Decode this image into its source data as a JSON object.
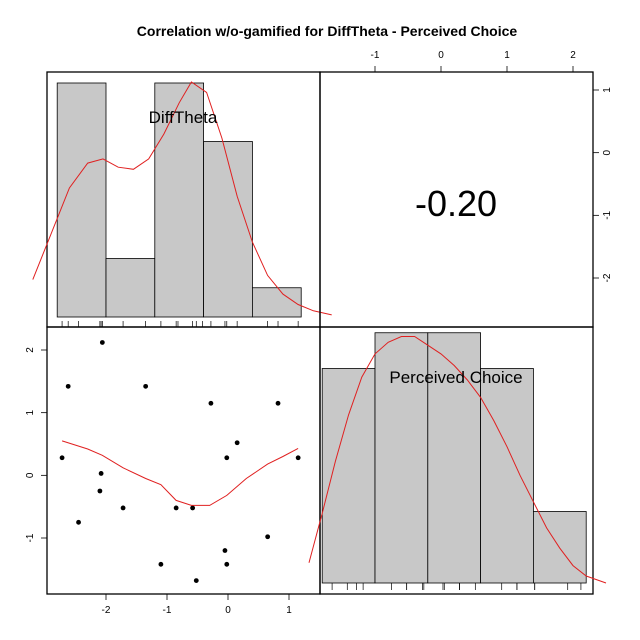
{
  "chart_data": {
    "type": "pairs",
    "title": "Correlation w/o-gamified for DiffTheta - Perceived Choice",
    "variables": [
      "DiffTheta",
      "Perceived Choice"
    ],
    "correlation_label": "-0.20",
    "correlation": -0.2,
    "x_ticks": [
      "-2",
      "-1",
      "0",
      "1"
    ],
    "y_ticks": [
      "2",
      "1",
      "0",
      "-1"
    ],
    "top_ticks": [
      "-1",
      "0",
      "1",
      "2"
    ],
    "right_ticks": [
      "1",
      "0",
      "-1",
      "-2"
    ],
    "histograms": [
      {
        "variable": "DiffTheta",
        "breaks": [
          -2.8,
          -2.0,
          -1.2,
          -0.4,
          0.4,
          1.2
        ],
        "heights": [
          4,
          1,
          4,
          3,
          0.5
        ],
        "rug": [
          -2.72,
          -2.62,
          -2.45,
          -2.1,
          -2.08,
          -2.06,
          -1.72,
          -1.35,
          -1.1,
          -0.85,
          -0.82,
          -0.58,
          -0.52,
          -0.42,
          -0.28,
          -0.05,
          -0.02,
          0.15,
          0.65,
          0.82,
          1.15
        ]
      },
      {
        "variable": "Perceived Choice",
        "breaks": [
          -1.8,
          -1.0,
          -0.2,
          0.6,
          1.4,
          2.2
        ],
        "heights": [
          3,
          3.5,
          3.5,
          3,
          1
        ],
        "rug": [
          -1.65,
          -1.42,
          -1.28,
          -1.18,
          -0.75,
          -0.52,
          -0.52,
          -0.28,
          -0.26,
          0.03,
          0.05,
          0.28,
          0.28,
          0.52,
          0.92,
          1.15,
          1.15,
          1.42,
          1.42,
          1.92,
          2.12
        ]
      }
    ],
    "density_curves": [
      {
        "variable": "DiffTheta",
        "x": [
          -3.2,
          -2.9,
          -2.6,
          -2.3,
          -2.05,
          -1.8,
          -1.55,
          -1.3,
          -1.05,
          -0.8,
          -0.6,
          -0.35,
          -0.1,
          0.15,
          0.4,
          0.65,
          0.9,
          1.15,
          1.4,
          1.7
        ],
        "density": [
          0.18,
          0.4,
          0.62,
          0.74,
          0.76,
          0.72,
          0.71,
          0.76,
          0.88,
          1.03,
          1.13,
          1.08,
          0.86,
          0.58,
          0.36,
          0.2,
          0.11,
          0.06,
          0.03,
          0.01
        ]
      },
      {
        "variable": "Perceived Choice",
        "x": [
          -2.0,
          -1.8,
          -1.6,
          -1.4,
          -1.2,
          -1.0,
          -0.8,
          -0.6,
          -0.4,
          -0.2,
          0.0,
          0.2,
          0.4,
          0.6,
          0.8,
          1.0,
          1.2,
          1.4,
          1.6,
          1.8,
          2.0,
          2.2,
          2.5
        ],
        "density": [
          0.35,
          1.2,
          2.1,
          2.9,
          3.55,
          3.95,
          4.15,
          4.25,
          4.25,
          4.1,
          3.95,
          3.75,
          3.5,
          3.2,
          2.8,
          2.35,
          1.85,
          1.4,
          0.95,
          0.6,
          0.3,
          0.12,
          0.0
        ]
      }
    ],
    "scatter": {
      "x": [
        -2.72,
        -2.62,
        -2.45,
        -2.1,
        -2.08,
        -2.06,
        -1.72,
        -1.35,
        -1.1,
        -0.85,
        -0.58,
        -0.52,
        -0.28,
        -0.05,
        -0.02,
        -0.02,
        0.15,
        0.65,
        0.82,
        1.15
      ],
      "y": [
        0.28,
        1.42,
        -0.75,
        -0.25,
        0.03,
        2.12,
        -0.52,
        1.42,
        -1.42,
        -0.52,
        -0.52,
        -1.68,
        1.15,
        -1.2,
        -1.42,
        0.28,
        0.52,
        -0.98,
        1.15,
        0.28
      ]
    },
    "loess": {
      "x": [
        -2.72,
        -2.3,
        -2.06,
        -1.72,
        -1.35,
        -1.1,
        -0.85,
        -0.6,
        -0.3,
        -0.02,
        0.3,
        0.65,
        0.9,
        1.15
      ],
      "y": [
        0.55,
        0.42,
        0.32,
        0.12,
        -0.05,
        -0.15,
        -0.4,
        -0.48,
        -0.48,
        -0.32,
        -0.05,
        0.18,
        0.3,
        0.43
      ]
    }
  }
}
